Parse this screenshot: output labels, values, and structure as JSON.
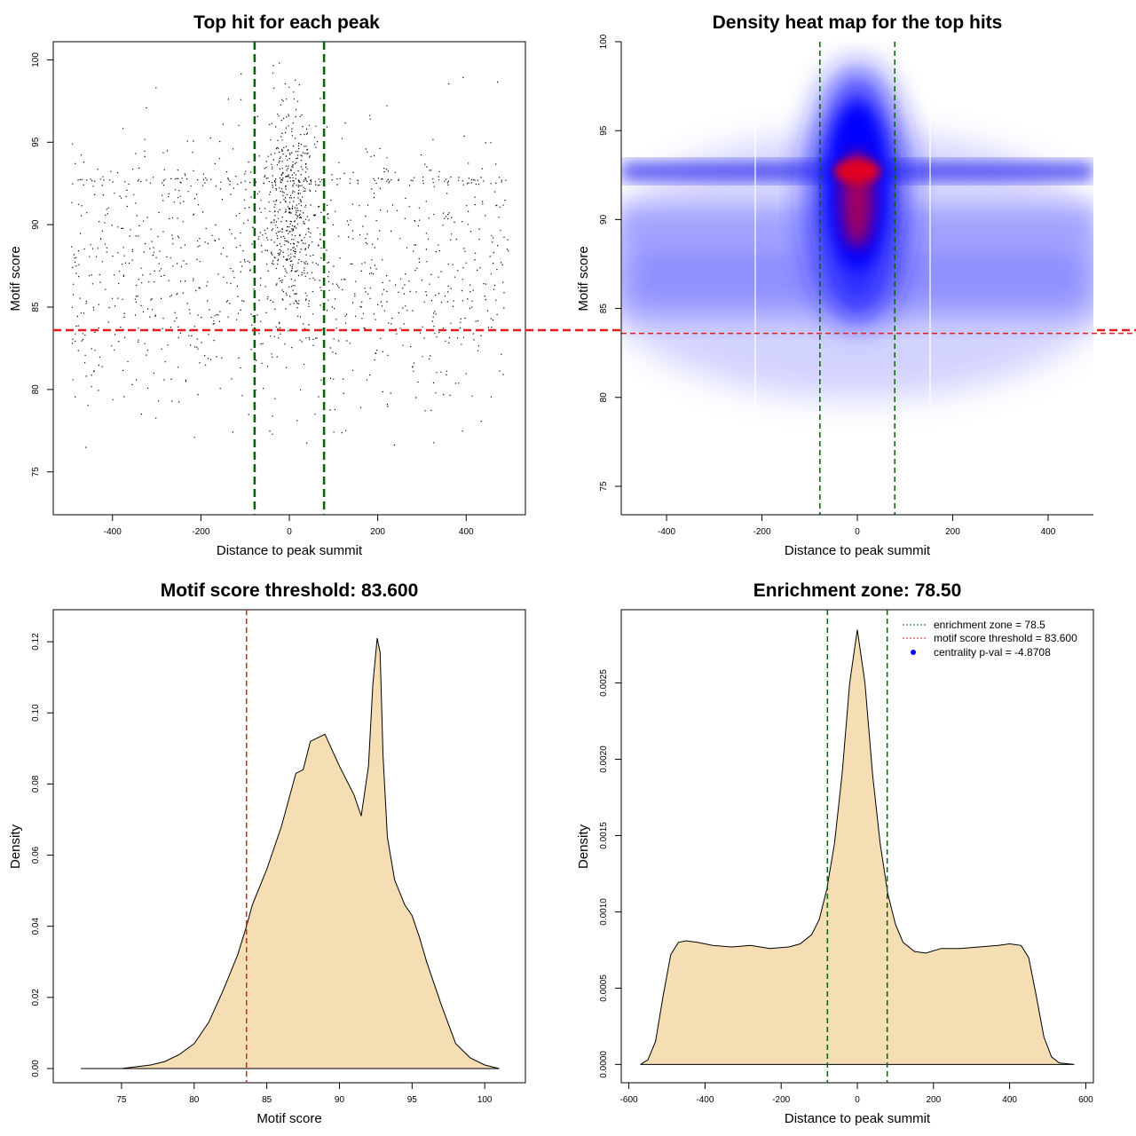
{
  "colors": {
    "fill": "#F5DEB3",
    "zone": "#006400",
    "threshold": "#E02020",
    "points": "#000000",
    "legend_dot": "#0000FF"
  },
  "chart_data": [
    {
      "id": "scatter",
      "type": "scatter",
      "title": "Top hit for each peak",
      "xlabel": "Distance to peak summit",
      "ylabel": "Motif score",
      "xlim": [
        -534,
        534
      ],
      "ylim": [
        72.4,
        101.1
      ],
      "xticks": [
        -400,
        -200,
        0,
        200,
        400
      ],
      "yticks": [
        75,
        80,
        85,
        90,
        95,
        100
      ],
      "vlines": [
        -78.5,
        78.5
      ],
      "hline": 83.6,
      "point_count": 16000
    },
    {
      "id": "heatmap",
      "type": "heatmap",
      "title": "Density heat map for the top hits",
      "xlabel": "Distance to peak summit",
      "ylabel": "Motif score",
      "xlim": [
        -495,
        495
      ],
      "ylim": [
        73.4,
        100
      ],
      "xticks": [
        -400,
        -200,
        0,
        200,
        400
      ],
      "yticks": [
        75,
        80,
        85,
        90,
        95,
        100
      ],
      "vlines": [
        -78.5,
        78.5
      ],
      "hline": 83.6
    },
    {
      "id": "score_density",
      "type": "area",
      "title": "Motif score threshold: 83.600",
      "xlabel": "Motif score",
      "ylabel": "Density",
      "xlim": [
        70.3,
        102.8
      ],
      "ylim": [
        -0.004,
        0.129
      ],
      "xticks": [
        75,
        80,
        85,
        90,
        95,
        100
      ],
      "yticks": [
        0.0,
        0.02,
        0.04,
        0.06,
        0.08,
        0.1,
        0.12
      ],
      "ytick_labels": [
        "0.00",
        "0.02",
        "0.04",
        "0.06",
        "0.08",
        "0.10",
        "0.12"
      ],
      "vline": 83.6,
      "x": [
        72.2,
        75,
        77,
        78,
        79,
        80,
        81,
        82,
        83,
        83.6,
        84,
        85,
        86,
        87,
        87.5,
        88,
        89,
        90,
        91,
        91.5,
        92,
        92.3,
        92.6,
        92.8,
        93,
        93.3,
        93.8,
        94.5,
        95,
        95.5,
        96,
        97,
        98,
        99,
        100,
        101
      ],
      "y": [
        0.0,
        0.0,
        0.001,
        0.002,
        0.004,
        0.007,
        0.013,
        0.022,
        0.032,
        0.04,
        0.046,
        0.056,
        0.068,
        0.083,
        0.084,
        0.092,
        0.094,
        0.085,
        0.077,
        0.071,
        0.085,
        0.108,
        0.121,
        0.117,
        0.088,
        0.065,
        0.053,
        0.046,
        0.043,
        0.037,
        0.03,
        0.018,
        0.007,
        0.003,
        0.001,
        0.0
      ]
    },
    {
      "id": "distance_density",
      "type": "area",
      "title": "Enrichment zone: 78.50",
      "xlabel": "Distance to peak summit",
      "ylabel": "Density",
      "xlim": [
        -620,
        620
      ],
      "ylim": [
        -0.00012,
        0.00298
      ],
      "xticks": [
        -600,
        -400,
        -200,
        0,
        200,
        400,
        600
      ],
      "yticks": [
        0.0,
        0.0005,
        0.001,
        0.0015,
        0.002,
        0.0025
      ],
      "ytick_labels": [
        "0.0000",
        "0.0005",
        "0.0010",
        "0.0015",
        "0.0020",
        "0.0025"
      ],
      "vlines": [
        -78.5,
        78.5
      ],
      "x": [
        -570,
        -550,
        -530,
        -510,
        -490,
        -470,
        -450,
        -420,
        -380,
        -330,
        -280,
        -230,
        -180,
        -150,
        -120,
        -100,
        -80,
        -60,
        -40,
        -20,
        0,
        20,
        40,
        60,
        80,
        100,
        120,
        150,
        180,
        220,
        270,
        320,
        370,
        400,
        430,
        450,
        470,
        490,
        510,
        530,
        550,
        570
      ],
      "y": [
        0.0,
        3e-05,
        0.00015,
        0.00045,
        0.00072,
        0.0008,
        0.00081,
        0.0008,
        0.00078,
        0.00077,
        0.00078,
        0.00076,
        0.00077,
        0.00079,
        0.00085,
        0.00095,
        0.00115,
        0.00145,
        0.0019,
        0.0025,
        0.00285,
        0.0025,
        0.0019,
        0.00145,
        0.00112,
        0.00092,
        0.0008,
        0.00074,
        0.00073,
        0.00076,
        0.00076,
        0.00077,
        0.00078,
        0.00079,
        0.00078,
        0.0007,
        0.00045,
        0.00018,
        5e-05,
        1e-05,
        5e-06,
        0.0
      ],
      "legend": [
        {
          "label": "enrichment zone = 78.5",
          "style": "dotted",
          "color": "#006400"
        },
        {
          "label": "motif score threshold = 83.600",
          "style": "dotted",
          "color": "#E02020"
        },
        {
          "label": "centrality p-val = -4.8708",
          "style": "dot",
          "color": "#0000FF"
        }
      ],
      "legend_position": "top-right"
    }
  ]
}
